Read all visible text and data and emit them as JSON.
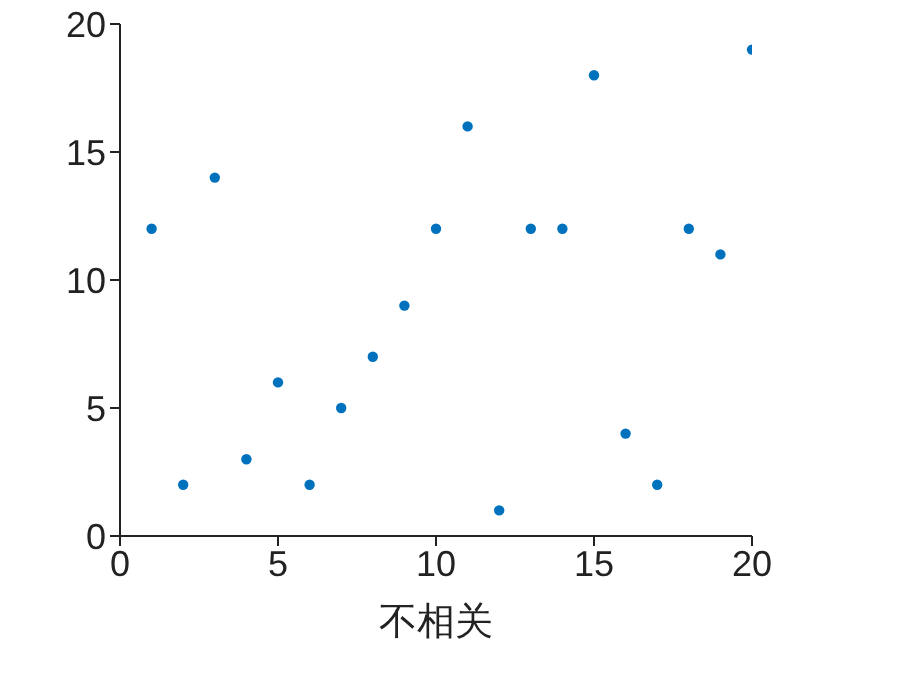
{
  "chart_data": {
    "type": "scatter",
    "xlabel": "不相关",
    "x": [
      1,
      2,
      3,
      4,
      5,
      6,
      7,
      8,
      9,
      10,
      11,
      12,
      13,
      14,
      15,
      16,
      17,
      18,
      19,
      20
    ],
    "series": [
      {
        "color": "#0072bd",
        "values": [
          12,
          2,
          14,
          3,
          6,
          2,
          5,
          7,
          9,
          12,
          16,
          1,
          12,
          12,
          18,
          4,
          2,
          12,
          11,
          19
        ]
      }
    ],
    "xlim": [
      0,
      20
    ],
    "xticks": [
      0,
      5,
      10,
      15,
      20
    ],
    "ylim": [
      0,
      20
    ],
    "yticks": [
      0,
      5,
      10,
      15,
      20
    ],
    "marker": "circle"
  }
}
